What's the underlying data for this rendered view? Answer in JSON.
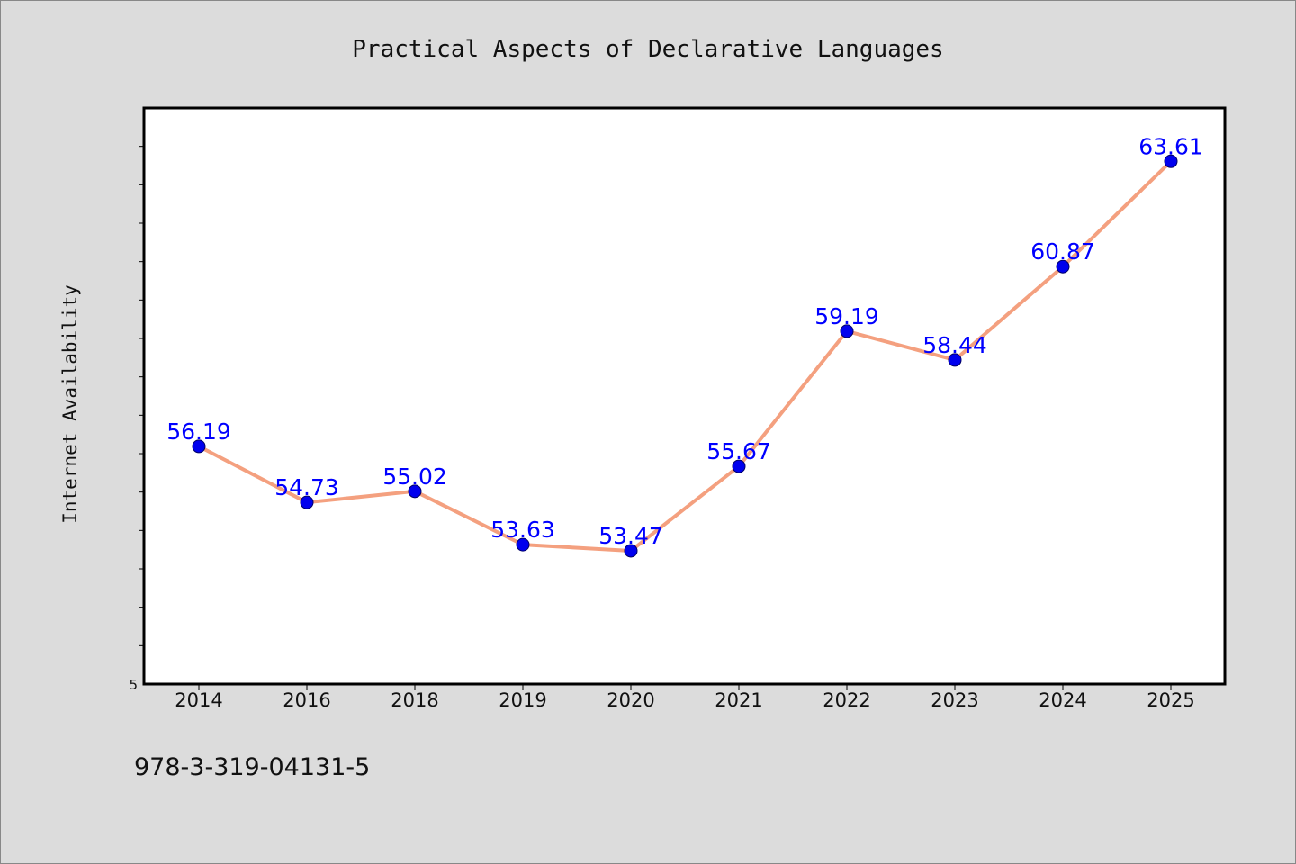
{
  "chart_data": {
    "type": "line",
    "title": "Practical Aspects of Declarative Languages",
    "xlabel": "",
    "ylabel": "Internet Availability",
    "categories": [
      "2014",
      "2016",
      "2018",
      "2019",
      "2020",
      "2021",
      "2022",
      "2023",
      "2024",
      "2025"
    ],
    "series": [
      {
        "values": [
          56.19,
          54.73,
          55.02,
          53.63,
          53.47,
          55.67,
          59.19,
          58.44,
          60.87,
          63.61
        ]
      }
    ],
    "data_labels": [
      "56.19",
      "54.73",
      "55.02",
      "53.63",
      "53.47",
      "55.67",
      "59.19",
      "58.44",
      "60.87",
      "63.61"
    ],
    "y_tick_labels": [
      "5"
    ],
    "ylim": [
      50.0,
      65.0
    ],
    "grid": false,
    "legend": "none",
    "colors": {
      "line": "#f4a07f",
      "marker": "#0000ee",
      "data_label": "#0000ff",
      "plot_background": "#ffffff",
      "page_background": "#dcdcdc"
    }
  },
  "footnote": "978-3-319-04131-5"
}
